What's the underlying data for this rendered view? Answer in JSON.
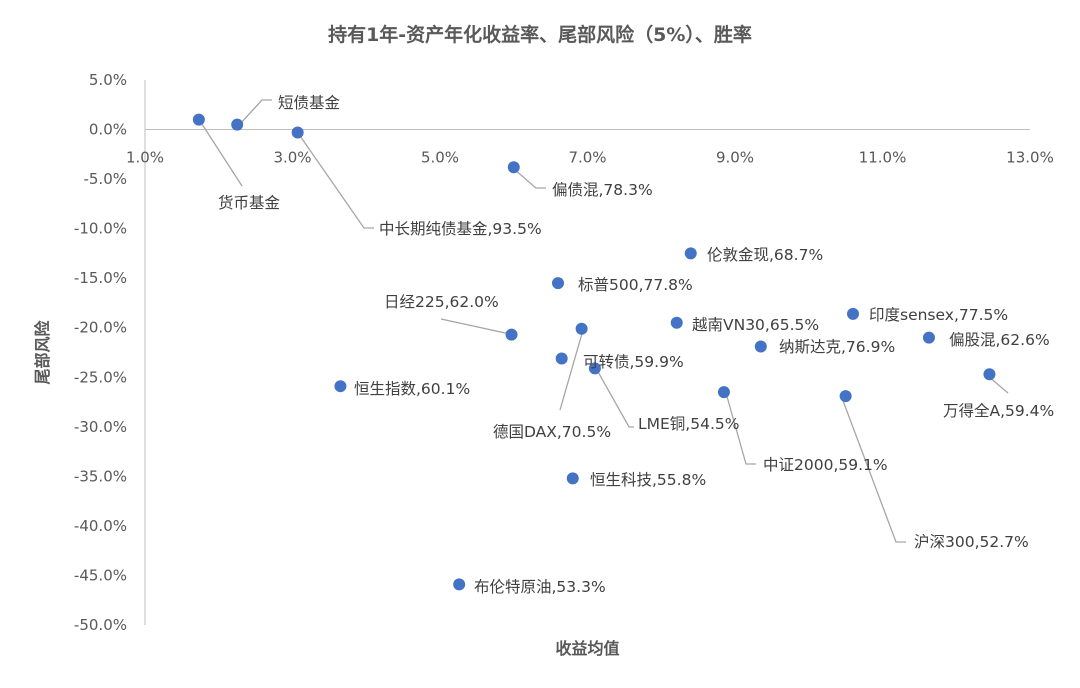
{
  "chart_data": {
    "type": "scatter",
    "title": "持有1年-资产年化收益率、尾部风险（5%）、胜率",
    "xlabel": "收益均值",
    "ylabel": "尾部风险",
    "xlim": [
      0.01,
      0.13
    ],
    "ylim": [
      -0.5,
      0.05
    ],
    "x_ticks": [
      "1.0%",
      "3.0%",
      "5.0%",
      "7.0%",
      "9.0%",
      "11.0%",
      "13.0%"
    ],
    "y_ticks": [
      "5.0%",
      "0.0%",
      "-5.0%",
      "-10.0%",
      "-15.0%",
      "-20.0%",
      "-25.0%",
      "-30.0%",
      "-35.0%",
      "-40.0%",
      "-45.0%",
      "-50.0%"
    ],
    "grid": false,
    "legend": "none",
    "marker_color": "#4472c4",
    "points": [
      {
        "label": "货币基金",
        "x": 0.0173,
        "y": 0.01
      },
      {
        "label": "短债基金",
        "x": 0.0225,
        "y": 0.005
      },
      {
        "label": "中长期纯债基金,93.5%",
        "x": 0.0307,
        "y": -0.003
      },
      {
        "label": "偏债混,78.3%",
        "x": 0.06,
        "y": -0.038
      },
      {
        "label": "伦敦金现,68.7%",
        "x": 0.084,
        "y": -0.125
      },
      {
        "label": "标普500,77.8%",
        "x": 0.066,
        "y": -0.155
      },
      {
        "label": "日经225,62.0%",
        "x": 0.0597,
        "y": -0.207
      },
      {
        "label": "德国DAX,70.5%",
        "x": 0.0692,
        "y": -0.201
      },
      {
        "label": "可转债,59.9%",
        "x": 0.0665,
        "y": -0.231
      },
      {
        "label": "LME铜,54.5%",
        "x": 0.071,
        "y": -0.241
      },
      {
        "label": "越南VN30,65.5%",
        "x": 0.0821,
        "y": -0.195
      },
      {
        "label": "印度sensex,77.5%",
        "x": 0.106,
        "y": -0.186
      },
      {
        "label": "纳斯达克,76.9%",
        "x": 0.0935,
        "y": -0.219
      },
      {
        "label": "偏股混,62.6%",
        "x": 0.1163,
        "y": -0.21
      },
      {
        "label": "万得全A,59.4%",
        "x": 0.1245,
        "y": -0.247
      },
      {
        "label": "恒生指数,60.1%",
        "x": 0.0365,
        "y": -0.259
      },
      {
        "label": "中证2000,59.1%",
        "x": 0.0885,
        "y": -0.265
      },
      {
        "label": "沪深300,52.7%",
        "x": 0.105,
        "y": -0.269
      },
      {
        "label": "恒生科技,55.8%",
        "x": 0.068,
        "y": -0.352
      },
      {
        "label": "布伦特原油,53.3%",
        "x": 0.0526,
        "y": -0.459
      }
    ]
  }
}
